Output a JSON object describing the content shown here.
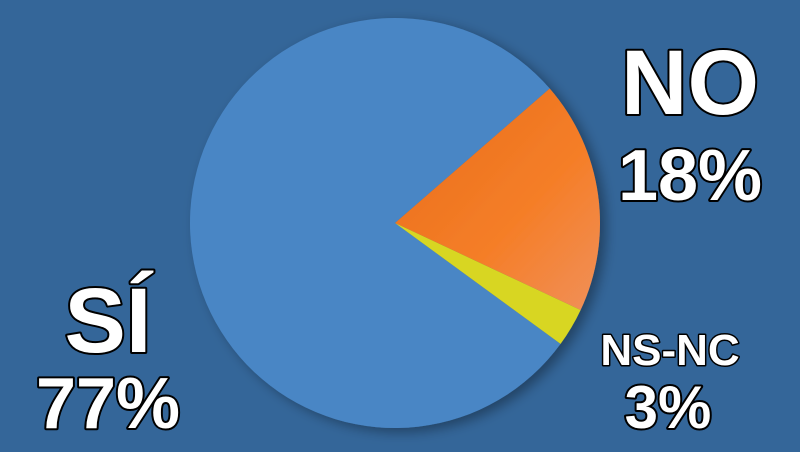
{
  "chart_data": {
    "type": "pie",
    "title": "",
    "slices": [
      {
        "label": "SÍ",
        "value": 77,
        "value_label": "77%",
        "color": "#4a86c5"
      },
      {
        "label": "NO",
        "value": 18,
        "value_label": "18%",
        "color": "#f07a22"
      },
      {
        "label": "NS-NC",
        "value": 3,
        "value_label": "3%",
        "color": "#d8d622"
      }
    ],
    "background": "#346699",
    "legend": "none"
  }
}
